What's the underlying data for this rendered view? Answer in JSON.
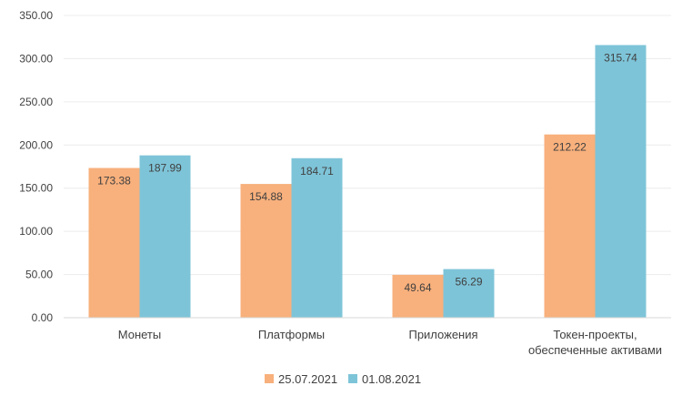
{
  "chart_data": {
    "type": "bar",
    "categories": [
      "Монеты",
      "Платформы",
      "Приложения",
      "Токен-проекты,\nобеспеченные активами"
    ],
    "series": [
      {
        "name": "25.07.2021",
        "color": "#f8b07c",
        "values": [
          173.38,
          154.88,
          49.64,
          212.22
        ]
      },
      {
        "name": "01.08.2021",
        "color": "#7ec4d8",
        "values": [
          187.99,
          184.71,
          56.29,
          315.74
        ]
      }
    ],
    "yticks": [
      "0.00",
      "50.00",
      "100.00",
      "150.00",
      "200.00",
      "250.00",
      "300.00",
      "350.00"
    ],
    "ylim": [
      0,
      350
    ],
    "data_labels": true,
    "grid": true,
    "legend": "bottom-center"
  }
}
